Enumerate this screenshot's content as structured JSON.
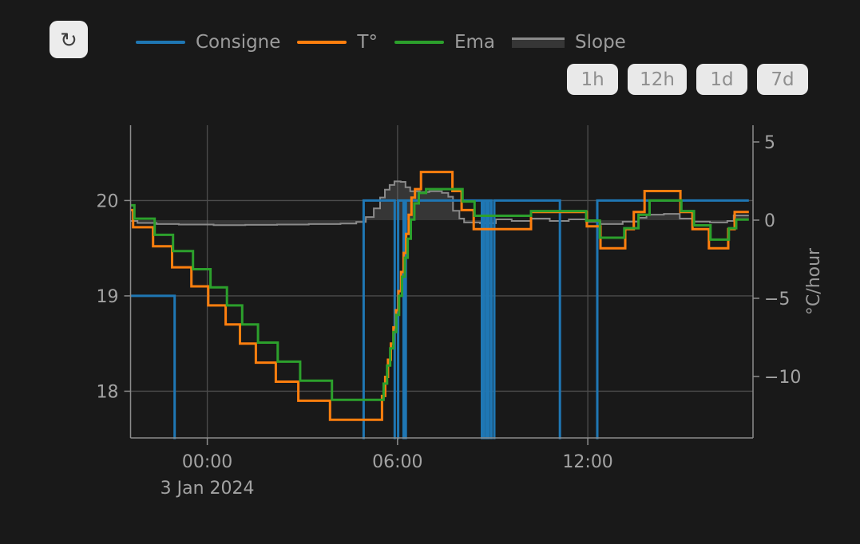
{
  "colors": {
    "background": "#191919",
    "grid": "#4c4c4c",
    "axis": "#8c8c8c",
    "tick_label": "#a3a3a3",
    "button_bg": "#e9e9e9",
    "button_text": "#8f8f8f",
    "consigne": "#1f77b4",
    "temperature": "#ff7f0e",
    "ema": "#2ca02c",
    "slope": "#8a8a8a"
  },
  "toolbar": {
    "refresh_icon": "↻",
    "ranges": [
      {
        "label": "1h"
      },
      {
        "label": "12h"
      },
      {
        "label": "1d"
      },
      {
        "label": "7d"
      }
    ]
  },
  "legend": {
    "items": [
      {
        "label": "Consigne",
        "type": "line",
        "color": "#1f77b4"
      },
      {
        "label": "T°",
        "type": "line",
        "color": "#ff7f0e"
      },
      {
        "label": "Ema",
        "type": "line",
        "color": "#2ca02c"
      },
      {
        "label": "Slope",
        "type": "area",
        "color": "#8a8a8a",
        "fill": "rgba(130,130,130,0.28)"
      }
    ]
  },
  "chart_data": {
    "type": "line",
    "title": "",
    "x_unit": "hours_from_midnight_3_jan_2024",
    "x_range": [
      -2.42,
      17.21
    ],
    "x_ticks": [
      {
        "t": 0,
        "label": "00:00"
      },
      {
        "t": 6,
        "label": "06:00"
      },
      {
        "t": 12,
        "label": "12:00"
      }
    ],
    "x_date_label": "3 Jan 2024",
    "y_left": {
      "label": "",
      "range": [
        17.51,
        20.79
      ],
      "ticks": [
        {
          "v": 20,
          "label": "20"
        },
        {
          "v": 19,
          "label": "19"
        },
        {
          "v": 18,
          "label": "18"
        }
      ]
    },
    "y_right": {
      "title": "°C/hour",
      "range": [
        -13.93,
        6.07
      ],
      "ticks": [
        {
          "v": 5,
          "label": "5"
        },
        {
          "v": 0,
          "label": "0"
        },
        {
          "v": -5,
          "label": "−5"
        },
        {
          "v": -10,
          "label": "−10"
        }
      ]
    },
    "series": [
      {
        "name": "Consigne",
        "axis": "left",
        "color": "#1f77b4",
        "width": 3,
        "step": true,
        "z": 1,
        "points": [
          [
            -2.42,
            19
          ],
          [
            -1.03,
            17
          ],
          [
            4.93,
            20
          ],
          [
            5.91,
            17
          ],
          [
            6.02,
            20
          ],
          [
            6.19,
            17
          ],
          [
            6.26,
            20
          ],
          [
            8.66,
            17
          ],
          [
            8.73,
            20
          ],
          [
            8.81,
            17
          ],
          [
            8.88,
            20
          ],
          [
            8.96,
            17
          ],
          [
            9.05,
            20
          ],
          [
            11.12,
            17
          ],
          [
            12.3,
            20
          ],
          [
            17.08,
            20
          ]
        ]
      },
      {
        "name": "T°",
        "axis": "left",
        "color": "#ff7f0e",
        "width": 3,
        "step": true,
        "z": 2,
        "points": [
          [
            -2.42,
            19.9
          ],
          [
            -2.34,
            19.72
          ],
          [
            -1.71,
            19.52
          ],
          [
            -1.11,
            19.3
          ],
          [
            -0.5,
            19.1
          ],
          [
            0.03,
            18.9
          ],
          [
            0.58,
            18.7
          ],
          [
            1.03,
            18.5
          ],
          [
            1.53,
            18.3
          ],
          [
            2.16,
            18.1
          ],
          [
            2.87,
            17.9
          ],
          [
            3.87,
            17.7
          ],
          [
            5.51,
            17.95
          ],
          [
            5.61,
            18.15
          ],
          [
            5.7,
            18.33
          ],
          [
            5.79,
            18.5
          ],
          [
            5.87,
            18.67
          ],
          [
            5.95,
            18.85
          ],
          [
            6.03,
            19.05
          ],
          [
            6.11,
            19.25
          ],
          [
            6.19,
            19.45
          ],
          [
            6.27,
            19.65
          ],
          [
            6.35,
            19.85
          ],
          [
            6.44,
            20.03
          ],
          [
            6.55,
            20.12
          ],
          [
            6.74,
            20.3
          ],
          [
            7.73,
            20.1
          ],
          [
            8.02,
            19.9
          ],
          [
            8.4,
            19.7
          ],
          [
            10.21,
            19.88
          ],
          [
            11.97,
            19.73
          ],
          [
            12.4,
            19.5
          ],
          [
            13.18,
            19.7
          ],
          [
            13.45,
            19.88
          ],
          [
            13.79,
            20.1
          ],
          [
            14.92,
            19.88
          ],
          [
            15.3,
            19.7
          ],
          [
            15.82,
            19.5
          ],
          [
            16.43,
            19.7
          ],
          [
            16.63,
            19.88
          ],
          [
            17.08,
            19.88
          ]
        ]
      },
      {
        "name": "Ema",
        "axis": "left",
        "color": "#2ca02c",
        "width": 3,
        "step": true,
        "z": 3,
        "points": [
          [
            -2.42,
            19.95
          ],
          [
            -2.3,
            19.81
          ],
          [
            -1.66,
            19.64
          ],
          [
            -1.08,
            19.47
          ],
          [
            -0.45,
            19.28
          ],
          [
            0.1,
            19.09
          ],
          [
            0.62,
            18.9
          ],
          [
            1.1,
            18.7
          ],
          [
            1.6,
            18.51
          ],
          [
            2.22,
            18.31
          ],
          [
            2.93,
            18.11
          ],
          [
            3.93,
            17.91
          ],
          [
            5.56,
            18.08
          ],
          [
            5.67,
            18.27
          ],
          [
            5.77,
            18.45
          ],
          [
            5.87,
            18.62
          ],
          [
            5.96,
            18.8
          ],
          [
            6.05,
            19.0
          ],
          [
            6.14,
            19.2
          ],
          [
            6.23,
            19.4
          ],
          [
            6.32,
            19.6
          ],
          [
            6.42,
            19.8
          ],
          [
            6.53,
            19.97
          ],
          [
            6.67,
            20.08
          ],
          [
            6.9,
            20.12
          ],
          [
            8.05,
            19.99
          ],
          [
            8.43,
            19.84
          ],
          [
            10.21,
            19.89
          ],
          [
            11.95,
            19.79
          ],
          [
            12.38,
            19.61
          ],
          [
            13.15,
            19.71
          ],
          [
            13.6,
            19.85
          ],
          [
            13.95,
            20.0
          ],
          [
            14.95,
            19.89
          ],
          [
            15.35,
            19.74
          ],
          [
            15.87,
            19.59
          ],
          [
            16.45,
            19.71
          ],
          [
            16.68,
            19.8
          ],
          [
            17.08,
            19.8
          ]
        ]
      },
      {
        "name": "Slope",
        "axis": "right",
        "color": "#8a8a8a",
        "width": 2,
        "step": true,
        "z": 0,
        "fill": "rgba(130,130,130,0.28)",
        "fill_to_zero": true,
        "points": [
          [
            -2.42,
            -0.05
          ],
          [
            -2.2,
            -0.18
          ],
          [
            -1.6,
            -0.25
          ],
          [
            -0.9,
            -0.28
          ],
          [
            0.2,
            -0.32
          ],
          [
            1.2,
            -0.3
          ],
          [
            2.2,
            -0.28
          ],
          [
            3.2,
            -0.25
          ],
          [
            4.2,
            -0.22
          ],
          [
            4.7,
            -0.12
          ],
          [
            5.0,
            0.2
          ],
          [
            5.25,
            0.75
          ],
          [
            5.45,
            1.45
          ],
          [
            5.6,
            1.95
          ],
          [
            5.75,
            2.25
          ],
          [
            5.9,
            2.48
          ],
          [
            6.1,
            2.45
          ],
          [
            6.25,
            2.1
          ],
          [
            6.4,
            1.85
          ],
          [
            6.7,
            1.8
          ],
          [
            7.0,
            1.85
          ],
          [
            7.4,
            1.75
          ],
          [
            7.6,
            1.5
          ],
          [
            7.75,
            0.6
          ],
          [
            7.95,
            0.1
          ],
          [
            8.1,
            -0.15
          ],
          [
            8.6,
            -0.2
          ],
          [
            9.1,
            0.05
          ],
          [
            9.6,
            -0.05
          ],
          [
            10.2,
            0.1
          ],
          [
            10.8,
            -0.05
          ],
          [
            11.4,
            0.05
          ],
          [
            11.95,
            -0.1
          ],
          [
            12.4,
            -0.25
          ],
          [
            13.1,
            -0.1
          ],
          [
            13.6,
            0.15
          ],
          [
            13.85,
            0.35
          ],
          [
            14.4,
            0.4
          ],
          [
            14.9,
            0.1
          ],
          [
            15.3,
            -0.1
          ],
          [
            15.85,
            -0.15
          ],
          [
            16.4,
            -0.05
          ],
          [
            16.6,
            0.3
          ],
          [
            17.08,
            0.3
          ]
        ]
      }
    ]
  }
}
